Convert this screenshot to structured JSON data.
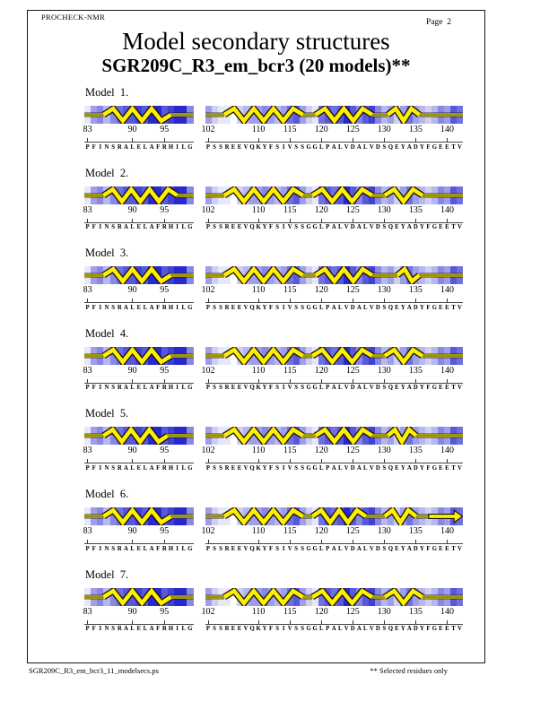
{
  "header": {
    "app_name": "PROCHECK-NMR",
    "page_label": "Page  2"
  },
  "title": "Model secondary structures",
  "subtitle": "SGR209C_R3_em_bcr3 (20 models)**",
  "footer": {
    "filename": "SGR209C_R3_em_bcr3_11_modelsecs.ps",
    "note": "** Selected residues only"
  },
  "colors": {
    "helix_yellow": "#FFEE00",
    "glyph_outline": "#111111",
    "shade_darkest": "#2828CD",
    "shade_lightest": "#FFFFFF",
    "rule": "#444444"
  },
  "chart_data": {
    "type": "heatmap",
    "title": "Model secondary structures",
    "subtitle": "SGR209C_R3_em_bcr3 (20 models)**",
    "x_axis": "residue number",
    "shade_scale": "per-residue blue shading, 0 = white (lightest) to 9 = dark blue (darkest)",
    "glyph_legend": "yellow zigzag = helix, yellow straight band = coil, yellow arrow = beta strand",
    "tracks": {
      "left": {
        "start": 83,
        "end": 99,
        "sequence": "PFINSRALELAFRHILG",
        "tick_labels": [
          83,
          90,
          95
        ],
        "shades": [
          1,
          4,
          5,
          3,
          5,
          6,
          7,
          7,
          8,
          7,
          9,
          9,
          7,
          8,
          9,
          9,
          5
        ]
      },
      "right": {
        "start": 102,
        "end": 142,
        "sequence": "PSSREEVQKYFSIVSSGGLPALVDALVDSQEYADYFGEETV",
        "tick_labels": [
          102,
          110,
          115,
          120,
          125,
          130,
          135,
          140
        ],
        "shades": [
          4,
          2,
          1,
          1,
          0,
          2,
          3,
          4,
          4,
          5,
          4,
          3,
          4,
          6,
          7,
          4,
          2,
          1,
          6,
          7,
          6,
          7,
          9,
          7,
          5,
          7,
          8,
          5,
          3,
          4,
          2,
          4,
          6,
          4,
          3,
          2,
          3,
          5,
          4,
          7,
          6
        ]
      }
    },
    "models": [
      {
        "label": "Model  1.",
        "segments": {
          "left": [
            {
              "type": "coil",
              "from": 83,
              "to": 86
            },
            {
              "type": "helix",
              "from": 86,
              "to": 96.5
            },
            {
              "type": "coil",
              "from": 96.5,
              "to": 100
            }
          ],
          "right": [
            {
              "type": "coil",
              "from": 102,
              "to": 105
            },
            {
              "type": "helix",
              "from": 105,
              "to": 117.5
            },
            {
              "type": "coil",
              "from": 117.5,
              "to": 119.5
            },
            {
              "type": "helix",
              "from": 119.5,
              "to": 128.5
            },
            {
              "type": "coil",
              "from": 128.5,
              "to": 131
            },
            {
              "type": "helix",
              "from": 131,
              "to": 136
            },
            {
              "type": "coil",
              "from": 136,
              "to": 143
            }
          ]
        }
      },
      {
        "label": "Model  2.",
        "segments": {
          "left": [
            {
              "type": "coil",
              "from": 83,
              "to": 86
            },
            {
              "type": "helix",
              "from": 86,
              "to": 97.5
            },
            {
              "type": "coil",
              "from": 97.5,
              "to": 100
            }
          ],
          "right": [
            {
              "type": "coil",
              "from": 102,
              "to": 105
            },
            {
              "type": "helix",
              "from": 105,
              "to": 117.5
            },
            {
              "type": "coil",
              "from": 117.5,
              "to": 119
            },
            {
              "type": "helix",
              "from": 119,
              "to": 128.5
            },
            {
              "type": "coil",
              "from": 128.5,
              "to": 130.5
            },
            {
              "type": "helix",
              "from": 130.5,
              "to": 136.5
            },
            {
              "type": "coil",
              "from": 136.5,
              "to": 143
            }
          ]
        }
      },
      {
        "label": "Model  3.",
        "segments": {
          "left": [
            {
              "type": "coil",
              "from": 83,
              "to": 86
            },
            {
              "type": "helix",
              "from": 86,
              "to": 96.5
            },
            {
              "type": "coil",
              "from": 96.5,
              "to": 100
            }
          ],
          "right": [
            {
              "type": "coil",
              "from": 102,
              "to": 105
            },
            {
              "type": "helix",
              "from": 105,
              "to": 117.5
            },
            {
              "type": "coil",
              "from": 117.5,
              "to": 119.5
            },
            {
              "type": "helix",
              "from": 119.5,
              "to": 128.5
            },
            {
              "type": "coil",
              "from": 128.5,
              "to": 132.5
            },
            {
              "type": "helix",
              "from": 132.5,
              "to": 136
            },
            {
              "type": "coil",
              "from": 136,
              "to": 143
            }
          ]
        }
      },
      {
        "label": "Model  4.",
        "segments": {
          "left": [
            {
              "type": "coil",
              "from": 83,
              "to": 86
            },
            {
              "type": "helix",
              "from": 86,
              "to": 96.5
            },
            {
              "type": "coil",
              "from": 96.5,
              "to": 100
            }
          ],
          "right": [
            {
              "type": "coil",
              "from": 102,
              "to": 105
            },
            {
              "type": "helix",
              "from": 105,
              "to": 117.5
            },
            {
              "type": "coil",
              "from": 117.5,
              "to": 119
            },
            {
              "type": "helix",
              "from": 119,
              "to": 128.5
            },
            {
              "type": "coil",
              "from": 128.5,
              "to": 130.5
            },
            {
              "type": "helix",
              "from": 130.5,
              "to": 136.5
            },
            {
              "type": "coil",
              "from": 136.5,
              "to": 143
            }
          ]
        }
      },
      {
        "label": "Model  5.",
        "segments": {
          "left": [
            {
              "type": "coil",
              "from": 83,
              "to": 86
            },
            {
              "type": "helix",
              "from": 86,
              "to": 96
            },
            {
              "type": "coil",
              "from": 96,
              "to": 100
            }
          ],
          "right": [
            {
              "type": "coil",
              "from": 102,
              "to": 105
            },
            {
              "type": "helix",
              "from": 105,
              "to": 117.5
            },
            {
              "type": "coil",
              "from": 117.5,
              "to": 119.5
            },
            {
              "type": "helix",
              "from": 119.5,
              "to": 128.5
            },
            {
              "type": "coil",
              "from": 128.5,
              "to": 131
            },
            {
              "type": "helix",
              "from": 131,
              "to": 135.5
            },
            {
              "type": "coil",
              "from": 135.5,
              "to": 143
            }
          ]
        }
      },
      {
        "label": "Model  6.",
        "segments": {
          "left": [
            {
              "type": "coil",
              "from": 83,
              "to": 86
            },
            {
              "type": "helix",
              "from": 86,
              "to": 96.5
            },
            {
              "type": "coil",
              "from": 96.5,
              "to": 100
            }
          ],
          "right": [
            {
              "type": "coil",
              "from": 102,
              "to": 105
            },
            {
              "type": "helix",
              "from": 105,
              "to": 117.5
            },
            {
              "type": "coil",
              "from": 117.5,
              "to": 119
            },
            {
              "type": "helix",
              "from": 119,
              "to": 127.5
            },
            {
              "type": "coil",
              "from": 127.5,
              "to": 130.5
            },
            {
              "type": "helix",
              "from": 130.5,
              "to": 135.5
            },
            {
              "type": "coil",
              "from": 135.5,
              "to": 137.5
            },
            {
              "type": "strand",
              "from": 137.5,
              "to": 143
            }
          ]
        }
      },
      {
        "label": "Model  7.",
        "segments": {
          "left": [
            {
              "type": "coil",
              "from": 83,
              "to": 86
            },
            {
              "type": "helix",
              "from": 86,
              "to": 96.5
            },
            {
              "type": "coil",
              "from": 96.5,
              "to": 100
            }
          ],
          "right": [
            {
              "type": "coil",
              "from": 102,
              "to": 105
            },
            {
              "type": "helix",
              "from": 105,
              "to": 117.5
            },
            {
              "type": "coil",
              "from": 117.5,
              "to": 119
            },
            {
              "type": "helix",
              "from": 119,
              "to": 128.5
            },
            {
              "type": "coil",
              "from": 128.5,
              "to": 130.5
            },
            {
              "type": "helix",
              "from": 130.5,
              "to": 136.5
            },
            {
              "type": "coil",
              "from": 136.5,
              "to": 143
            }
          ]
        }
      }
    ]
  }
}
